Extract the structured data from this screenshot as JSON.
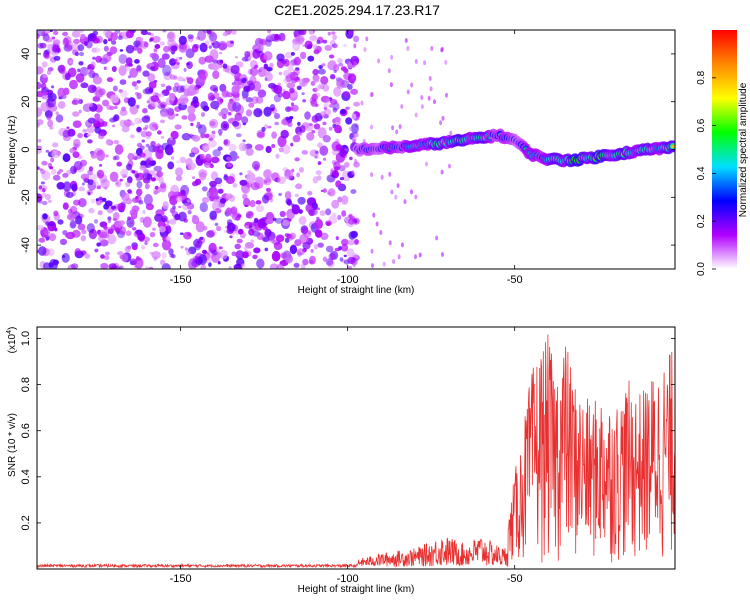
{
  "title": "C2E1.2025.294.17.23.R17",
  "chart_data": [
    {
      "type": "heatmap",
      "name": "spectrogram",
      "xlabel": "Height of straight line (km)",
      "ylabel": "Frequency (Hz)",
      "xlim": [
        -193,
        -2
      ],
      "ylim": [
        -50,
        50
      ],
      "xticks": [
        -150,
        -100,
        -50
      ],
      "yticks": [
        -40,
        -20,
        0,
        20,
        40
      ],
      "colorbar": {
        "label": "Normalized spectral amplitude",
        "range": [
          0.0,
          1.0
        ],
        "ticks": [
          0.0,
          0.2,
          0.4,
          0.6,
          0.8
        ],
        "tick_labels": [
          "0.0",
          "0.2",
          "0.4",
          "0.6",
          "0.8"
        ],
        "colors": [
          "#ffffff",
          "#b000ff",
          "#0000ff",
          "#00e0ff",
          "#00ff00",
          "#ffff00",
          "#ff8800",
          "#ff0000"
        ]
      },
      "ridge": {
        "description": "strong spectral ridge near 0 Hz",
        "x": [
          -97,
          -90,
          -80,
          -70,
          -60,
          -55,
          -50,
          -45,
          -40,
          -35,
          -30,
          -20,
          -10,
          -2
        ],
        "y": [
          0,
          0.5,
          1.5,
          3,
          5,
          6,
          4,
          -2,
          -4,
          -4.5,
          -4,
          -2,
          0,
          1
        ],
        "amplitude": [
          0.35,
          0.45,
          0.6,
          0.8,
          0.75,
          0.5,
          0.4,
          0.55,
          0.65,
          0.85,
          0.9,
          0.8,
          0.7,
          0.75
        ]
      },
      "noise_region": {
        "x_from": -193,
        "x_to": -97,
        "amplitude": 0.15
      }
    },
    {
      "type": "line",
      "name": "snr",
      "xlabel": "Height of straight line (km)",
      "ylabel": "SNR (10 * v/v)",
      "scale_label": "(x10",
      "scale_exp": "4",
      "scale_close": ")",
      "xlim": [
        -193,
        -2
      ],
      "ylim": [
        0,
        1.05
      ],
      "xticks": [
        -150,
        -100,
        -50
      ],
      "yticks": [
        0.2,
        0.4,
        0.6,
        0.8,
        1.0
      ],
      "color": "#e83030",
      "x": [
        -193,
        -150,
        -100,
        -95,
        -90,
        -85,
        -80,
        -75,
        -72,
        -68,
        -65,
        -60,
        -57,
        -53,
        -50,
        -48,
        -46,
        -44,
        -42,
        -40,
        -38,
        -35,
        -32,
        -30,
        -27,
        -24,
        -20,
        -16,
        -12,
        -8,
        -5,
        -2
      ],
      "env": [
        0.02,
        0.02,
        0.02,
        0.04,
        0.06,
        0.07,
        0.08,
        0.11,
        0.14,
        0.12,
        0.1,
        0.14,
        0.11,
        0.08,
        0.4,
        0.55,
        0.75,
        0.9,
        0.95,
        1.0,
        0.85,
        1.0,
        0.8,
        0.75,
        0.7,
        0.75,
        0.7,
        0.8,
        0.75,
        0.85,
        0.9,
        0.95
      ]
    }
  ]
}
